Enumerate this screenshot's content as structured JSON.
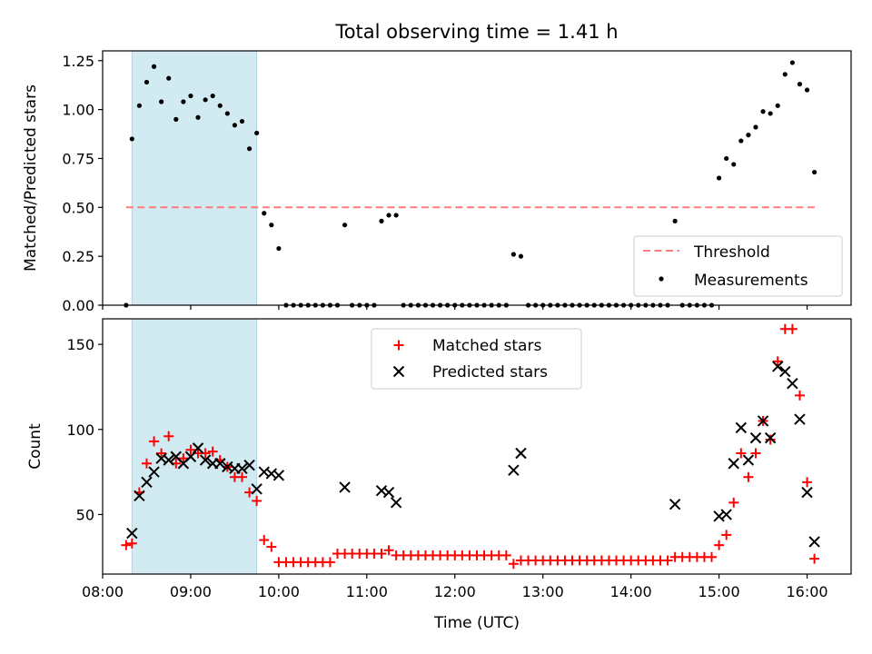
{
  "chart_data": [
    {
      "type": "scatter",
      "title": "Total observing time = 1.41 h",
      "ylabel": "Matched/Predicted stars",
      "xlabel": "",
      "xlim": [
        "08:00",
        "16:30"
      ],
      "ylim": [
        0,
        1.3
      ],
      "yticks": [
        "0.00",
        "0.25",
        "0.50",
        "0.75",
        "1.00",
        "1.25"
      ],
      "shaded_region": {
        "x0": "08:20",
        "x1": "09:45",
        "color": "#add8e6"
      },
      "threshold": {
        "name": "Threshold",
        "y": 0.5,
        "x0": "08:16",
        "x1": "16:07",
        "color": "#ff7b7b"
      },
      "legend": [
        "Threshold",
        "Measurements"
      ],
      "legend_position": "lower-right",
      "series": [
        {
          "name": "Measurements",
          "color": "#000000",
          "points": [
            [
              "08:16",
              0.0
            ],
            [
              "08:20",
              0.85
            ],
            [
              "08:25",
              1.02
            ],
            [
              "08:30",
              1.14
            ],
            [
              "08:35",
              1.22
            ],
            [
              "08:40",
              1.04
            ],
            [
              "08:45",
              1.16
            ],
            [
              "08:50",
              0.95
            ],
            [
              "08:55",
              1.04
            ],
            [
              "09:00",
              1.07
            ],
            [
              "09:05",
              0.96
            ],
            [
              "09:10",
              1.05
            ],
            [
              "09:15",
              1.07
            ],
            [
              "09:20",
              1.02
            ],
            [
              "09:25",
              0.98
            ],
            [
              "09:30",
              0.92
            ],
            [
              "09:35",
              0.94
            ],
            [
              "09:40",
              0.8
            ],
            [
              "09:45",
              0.88
            ],
            [
              "09:50",
              0.47
            ],
            [
              "09:55",
              0.41
            ],
            [
              "10:00",
              0.29
            ],
            [
              "10:05",
              0.0
            ],
            [
              "10:10",
              0.0
            ],
            [
              "10:15",
              0.0
            ],
            [
              "10:20",
              0.0
            ],
            [
              "10:25",
              0.0
            ],
            [
              "10:30",
              0.0
            ],
            [
              "10:35",
              0.0
            ],
            [
              "10:40",
              0.0
            ],
            [
              "10:45",
              0.41
            ],
            [
              "10:50",
              0.0
            ],
            [
              "10:55",
              0.0
            ],
            [
              "11:00",
              0.0
            ],
            [
              "11:05",
              0.0
            ],
            [
              "11:10",
              0.43
            ],
            [
              "11:15",
              0.46
            ],
            [
              "11:20",
              0.46
            ],
            [
              "11:25",
              0.0
            ],
            [
              "11:30",
              0.0
            ],
            [
              "11:35",
              0.0
            ],
            [
              "11:40",
              0.0
            ],
            [
              "11:45",
              0.0
            ],
            [
              "11:50",
              0.0
            ],
            [
              "11:55",
              0.0
            ],
            [
              "12:00",
              0.0
            ],
            [
              "12:05",
              0.0
            ],
            [
              "12:10",
              0.0
            ],
            [
              "12:15",
              0.0
            ],
            [
              "12:20",
              0.0
            ],
            [
              "12:25",
              0.0
            ],
            [
              "12:30",
              0.0
            ],
            [
              "12:35",
              0.0
            ],
            [
              "12:40",
              0.26
            ],
            [
              "12:45",
              0.25
            ],
            [
              "12:50",
              0.0
            ],
            [
              "12:55",
              0.0
            ],
            [
              "13:00",
              0.0
            ],
            [
              "13:05",
              0.0
            ],
            [
              "13:10",
              0.0
            ],
            [
              "13:15",
              0.0
            ],
            [
              "13:20",
              0.0
            ],
            [
              "13:25",
              0.0
            ],
            [
              "13:30",
              0.0
            ],
            [
              "13:35",
              0.0
            ],
            [
              "13:40",
              0.0
            ],
            [
              "13:45",
              0.0
            ],
            [
              "13:50",
              0.0
            ],
            [
              "13:55",
              0.0
            ],
            [
              "14:00",
              0.0
            ],
            [
              "14:05",
              0.0
            ],
            [
              "14:10",
              0.0
            ],
            [
              "14:15",
              0.0
            ],
            [
              "14:20",
              0.0
            ],
            [
              "14:25",
              0.0
            ],
            [
              "14:30",
              0.43
            ],
            [
              "14:35",
              0.0
            ],
            [
              "14:40",
              0.0
            ],
            [
              "14:45",
              0.0
            ],
            [
              "14:50",
              0.0
            ],
            [
              "14:55",
              0.0
            ],
            [
              "15:00",
              0.65
            ],
            [
              "15:05",
              0.75
            ],
            [
              "15:10",
              0.72
            ],
            [
              "15:15",
              0.84
            ],
            [
              "15:20",
              0.87
            ],
            [
              "15:25",
              0.91
            ],
            [
              "15:30",
              0.99
            ],
            [
              "15:35",
              0.98
            ],
            [
              "15:40",
              1.02
            ],
            [
              "15:45",
              1.18
            ],
            [
              "15:50",
              1.24
            ],
            [
              "15:55",
              1.13
            ],
            [
              "16:00",
              1.1
            ],
            [
              "16:05",
              0.68
            ]
          ]
        }
      ]
    },
    {
      "type": "scatter",
      "title": "",
      "xlabel": "Time (UTC)",
      "ylabel": "Count",
      "xlim": [
        "08:00",
        "16:30"
      ],
      "ylim": [
        15,
        165
      ],
      "xticks": [
        "08:00",
        "09:00",
        "10:00",
        "11:00",
        "12:00",
        "13:00",
        "14:00",
        "15:00",
        "16:00"
      ],
      "yticks": [
        "50",
        "100",
        "150"
      ],
      "shaded_region": {
        "x0": "08:20",
        "x1": "09:45",
        "color": "#add8e6"
      },
      "legend": [
        "Matched stars",
        "Predicted stars"
      ],
      "legend_position": "upper-center",
      "series": [
        {
          "name": "Matched stars",
          "marker": "+",
          "color": "#ff0000",
          "points": [
            [
              "08:16",
              32
            ],
            [
              "08:20",
              33
            ],
            [
              "08:25",
              63
            ],
            [
              "08:30",
              80
            ],
            [
              "08:35",
              93
            ],
            [
              "08:40",
              86
            ],
            [
              "08:45",
              96
            ],
            [
              "08:50",
              80
            ],
            [
              "08:55",
              83
            ],
            [
              "09:00",
              88
            ],
            [
              "09:05",
              86
            ],
            [
              "09:10",
              86
            ],
            [
              "09:15",
              87
            ],
            [
              "09:20",
              82
            ],
            [
              "09:25",
              78
            ],
            [
              "09:30",
              72
            ],
            [
              "09:35",
              72
            ],
            [
              "09:40",
              63
            ],
            [
              "09:45",
              58
            ],
            [
              "09:50",
              35
            ],
            [
              "09:55",
              31
            ],
            [
              "10:00",
              22
            ],
            [
              "10:05",
              22
            ],
            [
              "10:10",
              22
            ],
            [
              "10:15",
              22
            ],
            [
              "10:20",
              22
            ],
            [
              "10:25",
              22
            ],
            [
              "10:30",
              22
            ],
            [
              "10:35",
              22
            ],
            [
              "10:40",
              27
            ],
            [
              "10:45",
              27
            ],
            [
              "10:50",
              27
            ],
            [
              "10:55",
              27
            ],
            [
              "11:00",
              27
            ],
            [
              "11:05",
              27
            ],
            [
              "11:10",
              27
            ],
            [
              "11:15",
              29
            ],
            [
              "11:20",
              26
            ],
            [
              "11:25",
              26
            ],
            [
              "11:30",
              26
            ],
            [
              "11:35",
              26
            ],
            [
              "11:40",
              26
            ],
            [
              "11:45",
              26
            ],
            [
              "11:50",
              26
            ],
            [
              "11:55",
              26
            ],
            [
              "12:00",
              26
            ],
            [
              "12:05",
              26
            ],
            [
              "12:10",
              26
            ],
            [
              "12:15",
              26
            ],
            [
              "12:20",
              26
            ],
            [
              "12:25",
              26
            ],
            [
              "12:30",
              26
            ],
            [
              "12:35",
              26
            ],
            [
              "12:40",
              21
            ],
            [
              "12:45",
              23
            ],
            [
              "12:50",
              23
            ],
            [
              "12:55",
              23
            ],
            [
              "13:00",
              23
            ],
            [
              "13:05",
              23
            ],
            [
              "13:10",
              23
            ],
            [
              "13:15",
              23
            ],
            [
              "13:20",
              23
            ],
            [
              "13:25",
              23
            ],
            [
              "13:30",
              23
            ],
            [
              "13:35",
              23
            ],
            [
              "13:40",
              23
            ],
            [
              "13:45",
              23
            ],
            [
              "13:50",
              23
            ],
            [
              "13:55",
              23
            ],
            [
              "14:00",
              23
            ],
            [
              "14:05",
              23
            ],
            [
              "14:10",
              23
            ],
            [
              "14:15",
              23
            ],
            [
              "14:20",
              23
            ],
            [
              "14:25",
              23
            ],
            [
              "14:30",
              25
            ],
            [
              "14:35",
              25
            ],
            [
              "14:40",
              25
            ],
            [
              "14:45",
              25
            ],
            [
              "14:50",
              25
            ],
            [
              "14:55",
              25
            ],
            [
              "15:00",
              32
            ],
            [
              "15:05",
              38
            ],
            [
              "15:10",
              57
            ],
            [
              "15:15",
              86
            ],
            [
              "15:20",
              72
            ],
            [
              "15:25",
              86
            ],
            [
              "15:30",
              105
            ],
            [
              "15:35",
              94
            ],
            [
              "15:40",
              140
            ],
            [
              "15:45",
              159
            ],
            [
              "15:50",
              159
            ],
            [
              "15:55",
              120
            ],
            [
              "16:00",
              69
            ],
            [
              "16:05",
              24
            ]
          ]
        },
        {
          "name": "Predicted stars",
          "marker": "x",
          "color": "#000000",
          "points": [
            [
              "08:20",
              39
            ],
            [
              "08:25",
              61
            ],
            [
              "08:30",
              69
            ],
            [
              "08:35",
              75
            ],
            [
              "08:40",
              83
            ],
            [
              "08:45",
              82
            ],
            [
              "08:50",
              84
            ],
            [
              "08:55",
              80
            ],
            [
              "09:00",
              84
            ],
            [
              "09:05",
              89
            ],
            [
              "09:10",
              82
            ],
            [
              "09:15",
              80
            ],
            [
              "09:20",
              80
            ],
            [
              "09:25",
              78
            ],
            [
              "09:30",
              77
            ],
            [
              "09:35",
              77
            ],
            [
              "09:40",
              79
            ],
            [
              "09:45",
              65
            ],
            [
              "09:50",
              75
            ],
            [
              "09:55",
              74
            ],
            [
              "10:00",
              73
            ],
            [
              "10:45",
              66
            ],
            [
              "11:10",
              64
            ],
            [
              "11:15",
              63
            ],
            [
              "11:20",
              57
            ],
            [
              "12:40",
              76
            ],
            [
              "12:45",
              86
            ],
            [
              "14:30",
              56
            ],
            [
              "15:00",
              49
            ],
            [
              "15:05",
              50
            ],
            [
              "15:10",
              80
            ],
            [
              "15:15",
              101
            ],
            [
              "15:20",
              82
            ],
            [
              "15:25",
              95
            ],
            [
              "15:30",
              105
            ],
            [
              "15:35",
              95
            ],
            [
              "15:40",
              137
            ],
            [
              "15:45",
              134
            ],
            [
              "15:50",
              127
            ],
            [
              "15:55",
              106
            ],
            [
              "16:00",
              63
            ],
            [
              "16:05",
              34
            ]
          ]
        }
      ]
    }
  ]
}
